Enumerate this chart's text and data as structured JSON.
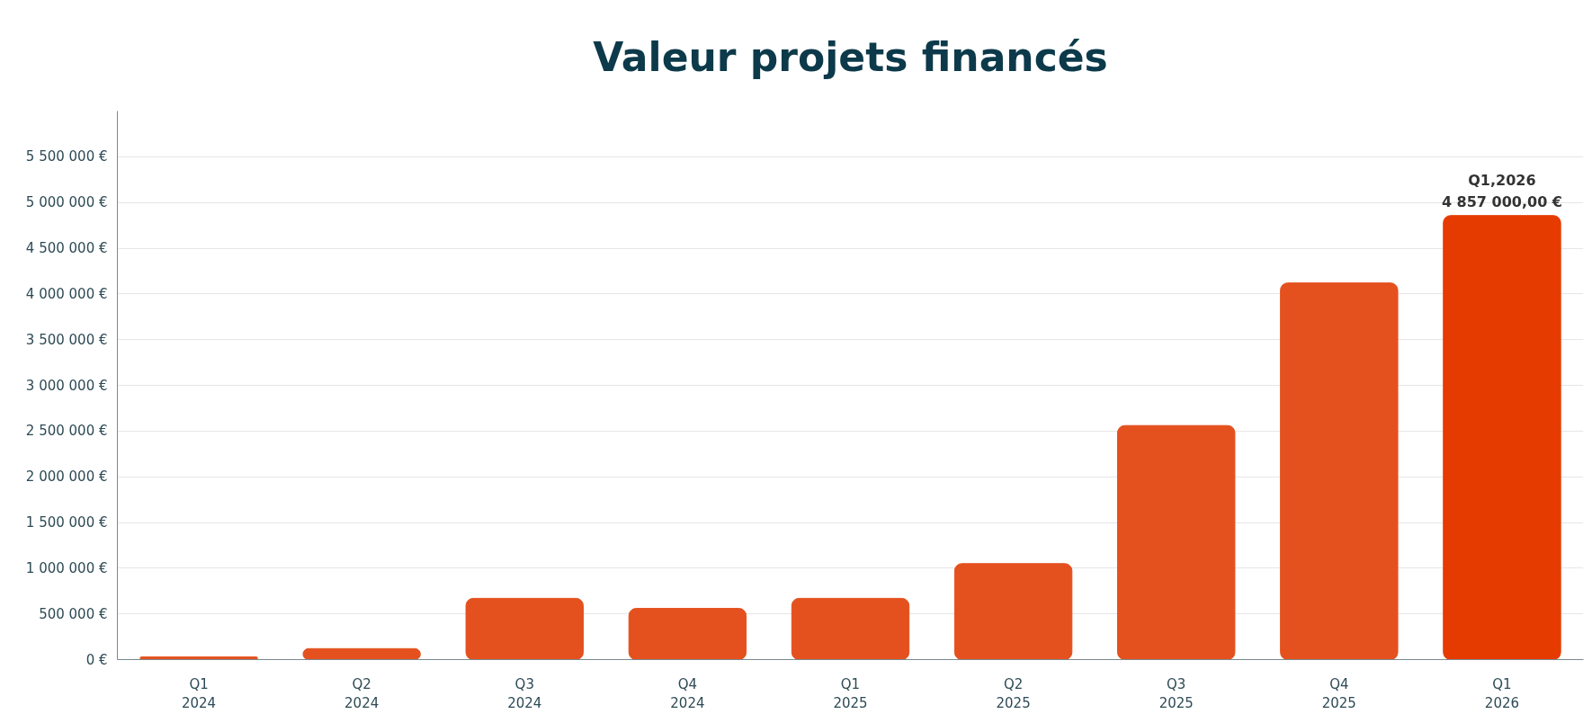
{
  "chart_data": {
    "type": "bar",
    "title": "Valeur projets financés",
    "categories": [
      "Q1\n2024",
      "Q2\n2024",
      "Q3\n2024",
      "Q4\n2024",
      "Q1\n2025",
      "Q2\n2025",
      "Q3\n2025",
      "Q4\n2025",
      "Q1\n2026"
    ],
    "values": [
      30000,
      120000,
      670000,
      560000,
      670000,
      1050000,
      2560000,
      4120000,
      4857000
    ],
    "colors": [
      "#e4511e",
      "#e4511e",
      "#e4511e",
      "#e4511e",
      "#e4511e",
      "#e4511e",
      "#e4511e",
      "#e4511e",
      "#e63b00"
    ],
    "value_labels": [
      null,
      null,
      null,
      null,
      null,
      null,
      null,
      null,
      "4 857 000,00 €"
    ],
    "annotations": [
      "Q1,2026"
    ],
    "ylim": [
      0,
      6000000
    ],
    "yticks": [
      {
        "value": 0,
        "label": "0 €"
      },
      {
        "value": 500000,
        "label": "500 000 €"
      },
      {
        "value": 1000000,
        "label": "1 000 000 €"
      },
      {
        "value": 1500000,
        "label": "1 500 000 €"
      },
      {
        "value": 2000000,
        "label": "2 000 000 €"
      },
      {
        "value": 2500000,
        "label": "2 500 000 €"
      },
      {
        "value": 3000000,
        "label": "3 000 000 €"
      },
      {
        "value": 3500000,
        "label": "3 500 000 €"
      },
      {
        "value": 4000000,
        "label": "4 000 000 €"
      },
      {
        "value": 4500000,
        "label": "4 500 000 €"
      },
      {
        "value": 5000000,
        "label": "5 000 000 €"
      },
      {
        "value": 5500000,
        "label": "5 500 000 €"
      }
    ],
    "grid": "y"
  }
}
